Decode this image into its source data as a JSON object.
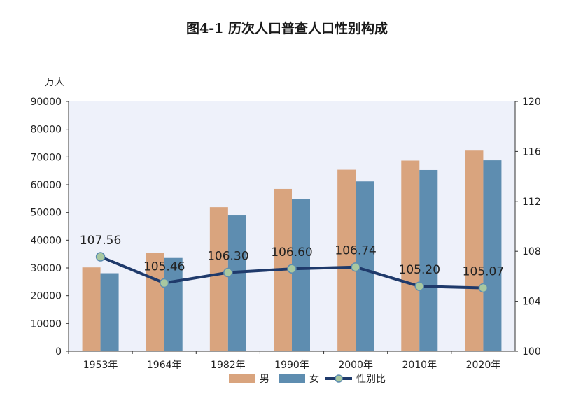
{
  "title": "图4-1    历次人口普查人口性别构成",
  "chart_data": {
    "type": "bar",
    "categories": [
      "1953年",
      "1964年",
      "1982年",
      "1990年",
      "2000年",
      "2010年",
      "2020年"
    ],
    "series": [
      {
        "name": "男",
        "type": "bar",
        "axis": "left",
        "color": "#D9A47E",
        "values": [
          30200,
          35400,
          51900,
          58500,
          65400,
          68700,
          72300
        ]
      },
      {
        "name": "女",
        "type": "bar",
        "axis": "left",
        "color": "#5E8DB0",
        "values": [
          28100,
          33600,
          48900,
          54900,
          61200,
          65300,
          68800
        ]
      },
      {
        "name": "性别比",
        "type": "line",
        "axis": "right",
        "color": "#1F3A6B",
        "marker_color": "#A8C8A0",
        "values": [
          107.56,
          105.46,
          106.3,
          106.6,
          106.74,
          105.2,
          105.07
        ],
        "labels": [
          "107.56",
          "105.46",
          "106.30",
          "106.60",
          "106.74",
          "105.20",
          "105.07"
        ]
      }
    ],
    "ylabel_left": "万人",
    "ylim_left": [
      0,
      90000
    ],
    "yticks_left": [
      "0",
      "10000",
      "20000",
      "30000",
      "40000",
      "50000",
      "60000",
      "70000",
      "80000",
      "90000"
    ],
    "ylim_right": [
      100,
      120
    ],
    "yticks_right": [
      "100",
      "104",
      "108",
      "112",
      "116",
      "120"
    ],
    "grid": false,
    "plot_background": "#EEF1FA",
    "legend_position": "bottom"
  }
}
